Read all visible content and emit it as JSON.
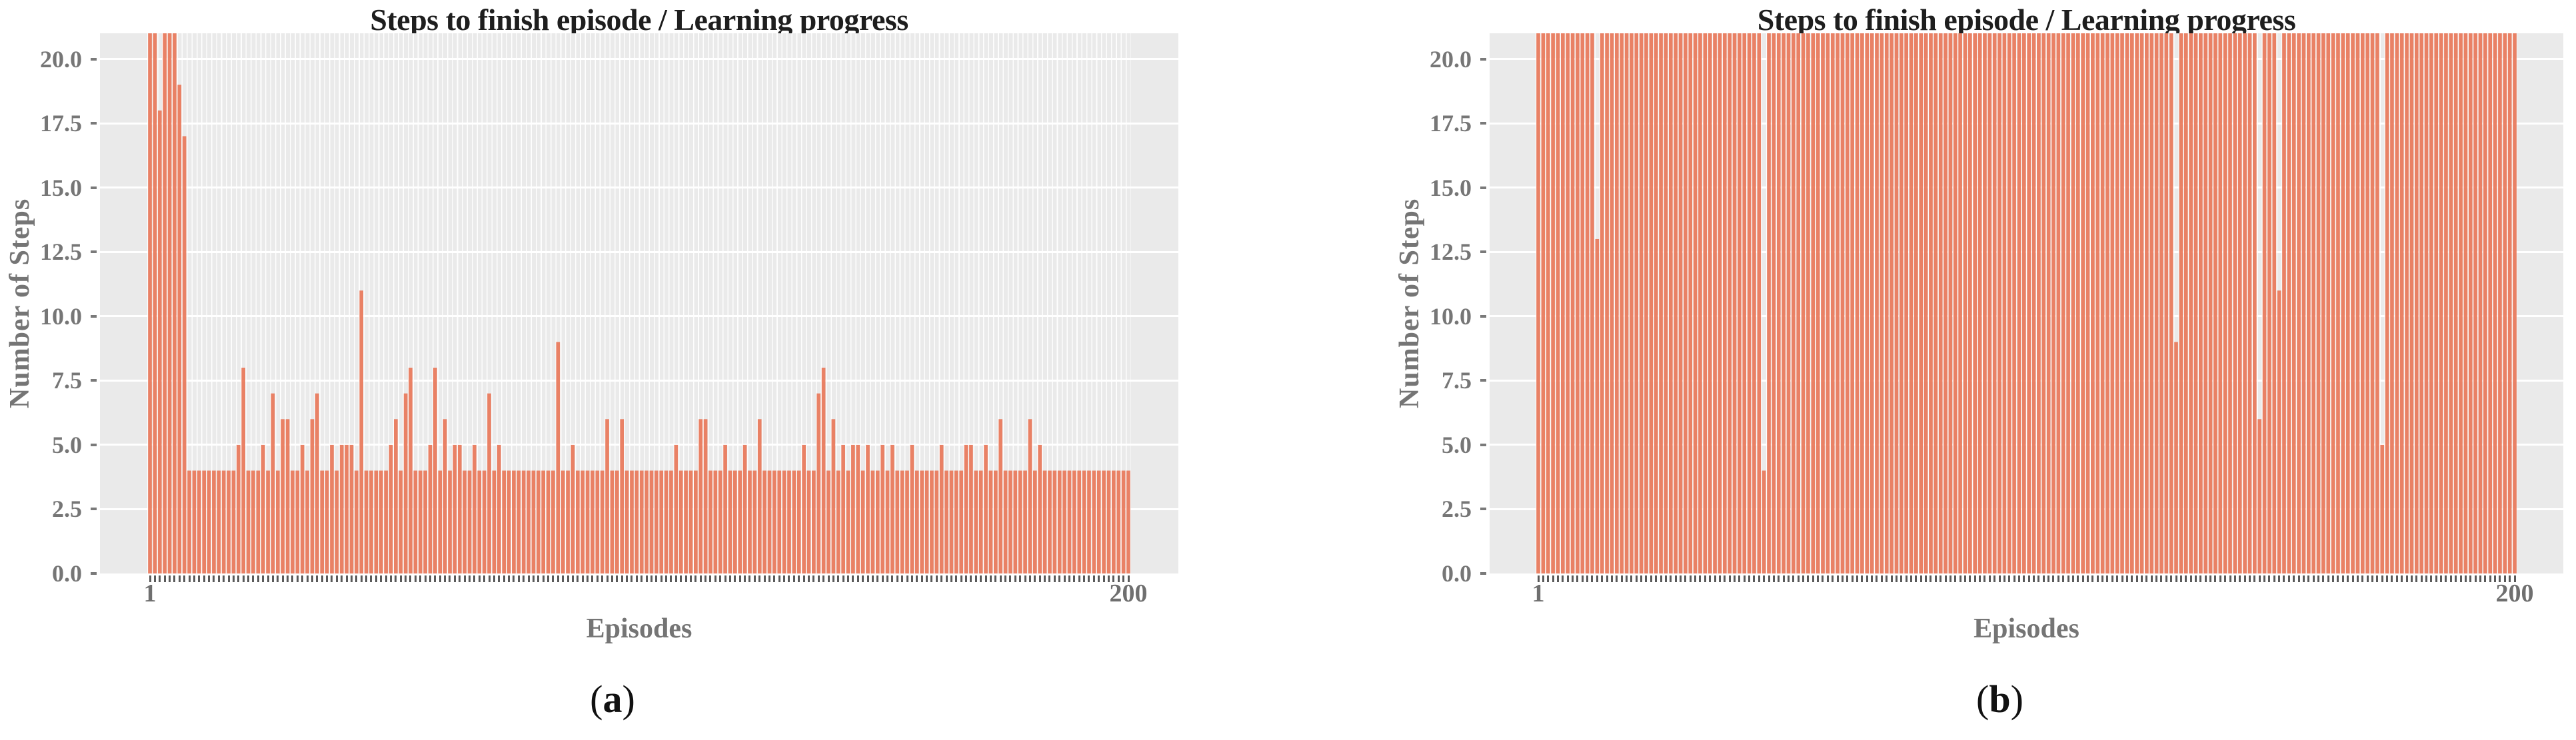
{
  "colors": {
    "bar": "#e8795a",
    "plot_background": "#eaeaea",
    "gridline": "#ffffff",
    "axis_text": "#757575",
    "tick_mark": "#5a5a5a",
    "title_text": "#1e1e1e"
  },
  "chart_data": [
    {
      "type": "bar",
      "title": "Steps to finish episode / Learning progress",
      "xlabel": "Episodes",
      "ylabel": "Number of Steps",
      "caption_open": "(",
      "caption_letter": "a",
      "caption_close": ")",
      "x_range": [
        1,
        200
      ],
      "x_tick_labels": [
        "1",
        "200"
      ],
      "y_ticks": [
        0,
        2.5,
        5,
        7.5,
        10,
        12.5,
        15,
        17.5,
        20
      ],
      "ylim": [
        0,
        21
      ],
      "values_clipped_at": 21,
      "grid": true,
      "legend_position": "none",
      "values": [
        21,
        21,
        18,
        21,
        21,
        21,
        19,
        17,
        4,
        4,
        4,
        4,
        4,
        4,
        4,
        4,
        4,
        4,
        5,
        8,
        4,
        4,
        4,
        5,
        4,
        7,
        4,
        6,
        6,
        4,
        4,
        5,
        4,
        6,
        7,
        4,
        4,
        5,
        4,
        5,
        5,
        5,
        4,
        11,
        4,
        4,
        4,
        4,
        4,
        5,
        6,
        4,
        7,
        8,
        4,
        4,
        4,
        5,
        8,
        4,
        6,
        4,
        5,
        5,
        4,
        4,
        5,
        4,
        4,
        7,
        4,
        5,
        4,
        4,
        4,
        4,
        4,
        4,
        4,
        4,
        4,
        4,
        4,
        9,
        4,
        4,
        5,
        4,
        4,
        4,
        4,
        4,
        4,
        6,
        4,
        4,
        6,
        4,
        4,
        4,
        4,
        4,
        4,
        4,
        4,
        4,
        4,
        5,
        4,
        4,
        4,
        4,
        6,
        6,
        4,
        4,
        4,
        5,
        4,
        4,
        4,
        5,
        4,
        4,
        6,
        4,
        4,
        4,
        4,
        4,
        4,
        4,
        4,
        5,
        4,
        4,
        7,
        8,
        4,
        6,
        4,
        5,
        4,
        5,
        5,
        4,
        5,
        4,
        4,
        5,
        4,
        5,
        4,
        4,
        4,
        5,
        4,
        4,
        4,
        4,
        4,
        5,
        4,
        4,
        4,
        4,
        5,
        5,
        4,
        4,
        5,
        4,
        4,
        6,
        4,
        4,
        4,
        4,
        4,
        6,
        4,
        5,
        4,
        4,
        4,
        4,
        4,
        4,
        4,
        4,
        4,
        4,
        4,
        4,
        4,
        4,
        4,
        4,
        4,
        4
      ]
    },
    {
      "type": "bar",
      "title": "Steps to finish episode / Learning progress",
      "xlabel": "Episodes",
      "ylabel": "Number of Steps",
      "caption_open": "(",
      "caption_letter": "b",
      "caption_close": ")",
      "x_range": [
        1,
        200
      ],
      "x_tick_labels": [
        "1",
        "200"
      ],
      "y_ticks": [
        0,
        2.5,
        5,
        7.5,
        10,
        12.5,
        15,
        17.5,
        20
      ],
      "ylim": [
        0,
        21
      ],
      "values_clipped_at": 21,
      "grid": true,
      "legend_position": "none",
      "values": [
        21,
        21,
        21,
        21,
        21,
        21,
        21,
        21,
        21,
        21,
        21,
        21,
        13,
        21,
        21,
        21,
        21,
        21,
        21,
        21,
        21,
        21,
        21,
        21,
        21,
        21,
        21,
        21,
        21,
        21,
        21,
        21,
        21,
        21,
        21,
        21,
        21,
        21,
        21,
        21,
        21,
        21,
        21,
        21,
        21,
        21,
        4,
        21,
        21,
        21,
        21,
        21,
        21,
        21,
        21,
        21,
        21,
        21,
        21,
        21,
        21,
        21,
        21,
        21,
        21,
        21,
        21,
        21,
        21,
        21,
        21,
        21,
        21,
        21,
        21,
        21,
        21,
        21,
        21,
        21,
        21,
        21,
        21,
        21,
        21,
        21,
        21,
        21,
        21,
        21,
        21,
        21,
        21,
        21,
        21,
        21,
        21,
        21,
        21,
        21,
        21,
        21,
        21,
        21,
        21,
        21,
        21,
        21,
        21,
        21,
        21,
        21,
        21,
        21,
        21,
        21,
        21,
        21,
        21,
        21,
        21,
        21,
        21,
        21,
        21,
        21,
        21,
        21,
        21,
        21,
        9,
        21,
        21,
        21,
        21,
        21,
        21,
        21,
        21,
        21,
        21,
        21,
        21,
        21,
        21,
        21,
        21,
        6,
        21,
        21,
        21,
        11,
        21,
        21,
        21,
        21,
        21,
        21,
        21,
        21,
        21,
        21,
        21,
        21,
        21,
        21,
        21,
        21,
        21,
        21,
        21,
        21,
        5,
        21,
        21,
        21,
        21,
        21,
        21,
        21,
        21,
        21,
        21,
        21,
        21,
        21,
        21,
        21,
        21,
        21,
        21,
        21,
        21,
        21,
        21,
        21,
        21,
        21,
        21,
        21
      ]
    }
  ]
}
